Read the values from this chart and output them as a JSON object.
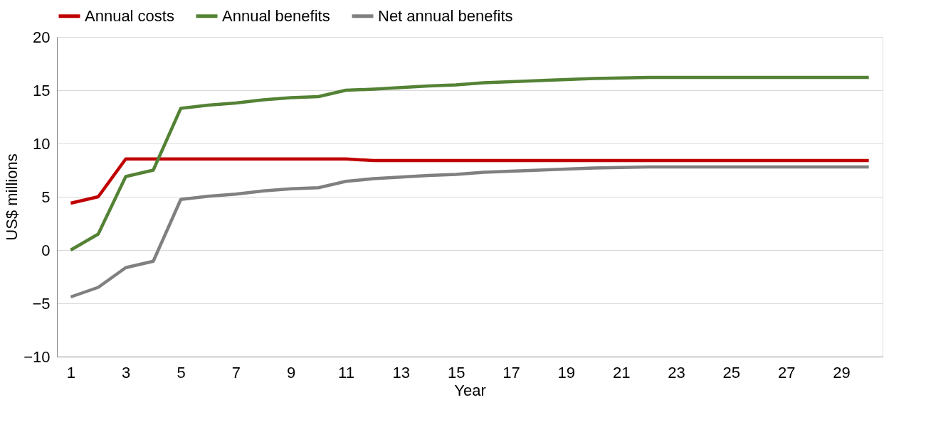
{
  "chart_data": {
    "type": "line",
    "xlabel": "Year",
    "ylabel": "US$ millions",
    "x": [
      1,
      2,
      3,
      4,
      5,
      6,
      7,
      8,
      9,
      10,
      11,
      12,
      13,
      14,
      15,
      16,
      17,
      18,
      19,
      20,
      21,
      22,
      23,
      24,
      25,
      26,
      27,
      28,
      29,
      30
    ],
    "xlim": [
      0.5,
      30.5
    ],
    "xticks": [
      1,
      3,
      5,
      7,
      9,
      11,
      13,
      15,
      17,
      19,
      21,
      23,
      25,
      27,
      29
    ],
    "ylim": [
      -10,
      20
    ],
    "yticks": [
      -10,
      -5,
      0,
      5,
      10,
      15,
      20
    ],
    "grid": "y",
    "legend": "top",
    "marker": "none",
    "line_style": "solid",
    "series": [
      {
        "name": "Annual costs",
        "color": "#c00000",
        "values": [
          4.4,
          5.0,
          8.55,
          8.55,
          8.55,
          8.55,
          8.55,
          8.55,
          8.55,
          8.55,
          8.55,
          8.4,
          8.4,
          8.4,
          8.4,
          8.4,
          8.4,
          8.4,
          8.4,
          8.4,
          8.4,
          8.4,
          8.4,
          8.4,
          8.4,
          8.4,
          8.4,
          8.4,
          8.4,
          8.4
        ]
      },
      {
        "name": "Annual benefits",
        "color": "#548235",
        "values": [
          0,
          1.5,
          6.9,
          7.5,
          13.3,
          13.6,
          13.8,
          14.1,
          14.3,
          14.4,
          15.0,
          15.1,
          15.25,
          15.4,
          15.5,
          15.7,
          15.8,
          15.9,
          16.0,
          16.1,
          16.15,
          16.2,
          16.2,
          16.2,
          16.2,
          16.2,
          16.2,
          16.2,
          16.2,
          16.2
        ]
      },
      {
        "name": "Net annual benefits",
        "color": "#808080",
        "values": [
          -4.4,
          -3.5,
          -1.65,
          -1.05,
          4.75,
          5.05,
          5.25,
          5.55,
          5.75,
          5.85,
          6.45,
          6.7,
          6.85,
          7.0,
          7.1,
          7.3,
          7.4,
          7.5,
          7.6,
          7.7,
          7.75,
          7.8,
          7.8,
          7.8,
          7.8,
          7.8,
          7.8,
          7.8,
          7.8,
          7.8
        ]
      }
    ]
  }
}
